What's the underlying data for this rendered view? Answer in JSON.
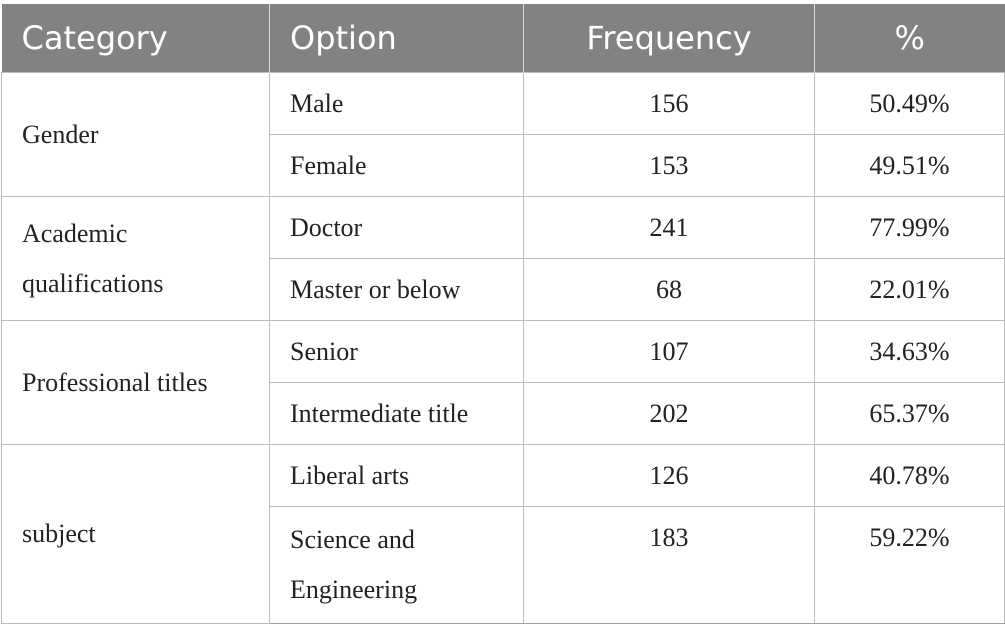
{
  "headers": [
    "Category",
    "Option",
    "Frequency",
    "%"
  ],
  "groups": [
    {
      "category": "Gender",
      "rows": [
        {
          "option": "Male",
          "frequency": "156",
          "percent": "50.49%"
        },
        {
          "option": "Female",
          "frequency": "153",
          "percent": "49.51%"
        }
      ]
    },
    {
      "category": "Academic qualifications",
      "rows": [
        {
          "option": "Doctor",
          "frequency": "241",
          "percent": "77.99%"
        },
        {
          "option": "Master or below",
          "frequency": "68",
          "percent": "22.01%"
        }
      ]
    },
    {
      "category": "Professional titles",
      "rows": [
        {
          "option": "Senior",
          "frequency": "107",
          "percent": "34.63%"
        },
        {
          "option": "Intermediate title",
          "frequency": "202",
          "percent": "65.37%"
        }
      ]
    },
    {
      "category": "subject",
      "rows": [
        {
          "option": "Liberal arts",
          "frequency": "126",
          "percent": "40.78%"
        },
        {
          "option": "Science and Engineering",
          "frequency": "183",
          "percent": "59.22%"
        }
      ]
    }
  ]
}
